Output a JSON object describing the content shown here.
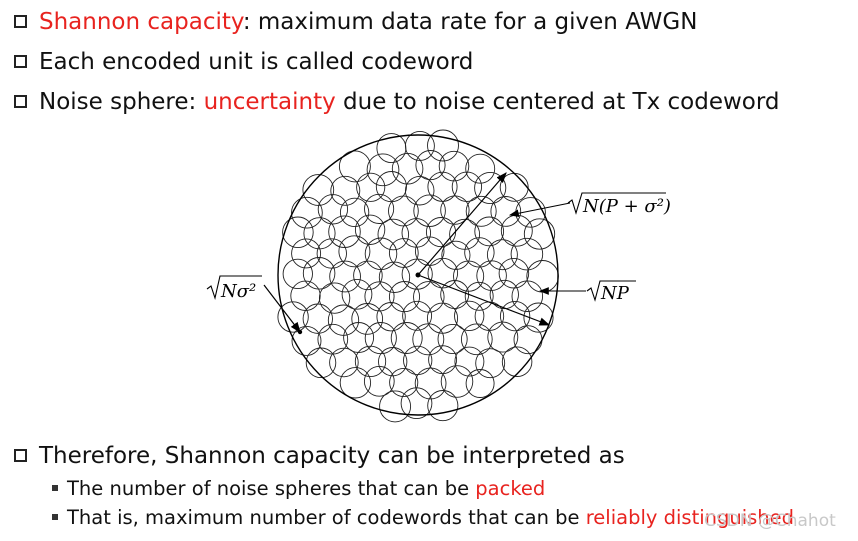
{
  "bullets": [
    {
      "highlight": "Shannon capacity",
      "rest": ": maximum data rate for a given AWGN"
    },
    {
      "text": "Each encoded unit is called codeword"
    },
    {
      "pre": "Noise sphere: ",
      "highlight": "uncertainty",
      "rest": " due to noise centered at Tx codeword"
    }
  ],
  "diagram": {
    "label_sqrt_N_P_sigma2": "N(P + σ²)",
    "label_sqrt_NP": "NP",
    "label_sqrt_N_sigma2": "Nσ²"
  },
  "conclusion": {
    "text": "Therefore, Shannon capacity can be interpreted as",
    "subs": [
      {
        "pre": "The number of noise spheres that can be ",
        "highlight": "packed"
      },
      {
        "pre": "That is, maximum number of codewords that can be ",
        "highlight": "reliably distinguished"
      }
    ]
  },
  "watermark": "CSDN @Chahot",
  "colors": {
    "highlight": "#e8231f"
  }
}
